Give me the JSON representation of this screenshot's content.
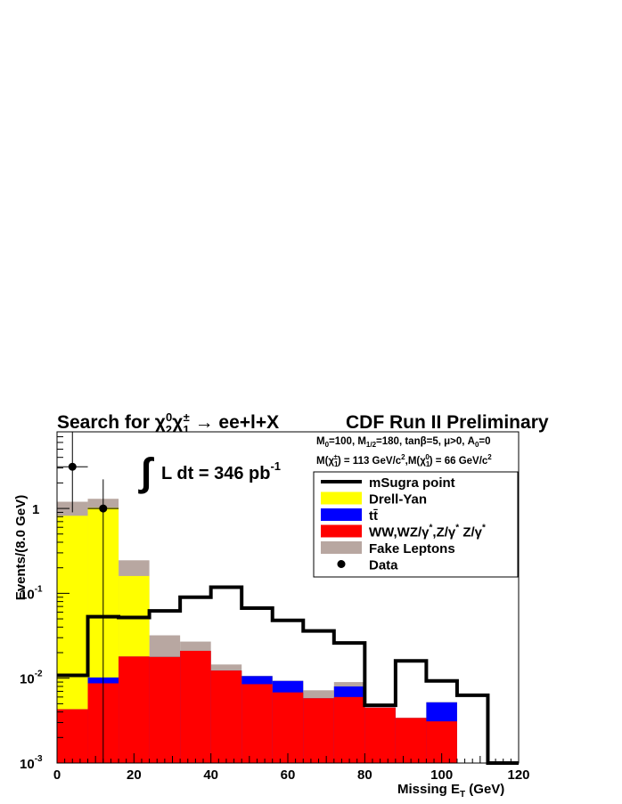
{
  "chart_data": {
    "type": "bar",
    "title": "Search for χ₂⁰χ₁± → ee+l+X",
    "title_parts": {
      "prefix": "Search for χ",
      "sub1": "2",
      "sup1": "0",
      "mid": "χ",
      "sub2": "1",
      "sup2": "±",
      "arrow": " → ",
      "suffix": "ee+l+X"
    },
    "experiment_label": "CDF Run II Preliminary",
    "luminosity": {
      "integral": "∫",
      "text": "L dt = 346 pb",
      "sup": "-1"
    },
    "params_line1": "M₀=100, M₁/₂=180, tanβ=5, μ>0, A₀=0",
    "params_line1_parts": {
      "a": "M",
      "a_sub": "0",
      "b": "=100, M",
      "b_sub": "1/2",
      "c": "=180, tanβ=5, μ>0, A",
      "c_sub": "0",
      "d": "=0"
    },
    "params_line2": "M(χ₁±) = 113 GeV/c²,M(χ₁⁰) = 66 GeV/c²",
    "params_line2_parts": {
      "a": "M(χ",
      "a_sub": "1",
      "a_sup": "±",
      "b": ") = 113 GeV/c",
      "b_sup": "2",
      "c": ",M(χ",
      "c_sub": "1",
      "c_sup": "0",
      "d": ") = 66 GeV/c",
      "d_sup": "2"
    },
    "xlabel": "Missing E_T (GeV)",
    "xlabel_parts": {
      "a": "Missing E",
      "sub": "T",
      "b": " (GeV)"
    },
    "ylabel": "Events/(8.0 GeV)",
    "xlim": [
      0,
      120
    ],
    "ylim": [
      0.001,
      8
    ],
    "yscale": "log",
    "x_ticks": [
      "0",
      "20",
      "40",
      "60",
      "80",
      "100",
      "120"
    ],
    "y_ticks": [
      {
        "base": "10",
        "exp": "-3",
        "value": 0.001
      },
      {
        "base": "10",
        "exp": "-2",
        "value": 0.01
      },
      {
        "base": "10",
        "exp": "-1",
        "value": 0.1
      },
      {
        "base": "1",
        "exp": "",
        "value": 1
      }
    ],
    "bin_edges": [
      0,
      8,
      16,
      24,
      32,
      40,
      48,
      56,
      64,
      72,
      80,
      88,
      96,
      104,
      112,
      120
    ],
    "stacked_series": [
      {
        "name": "WW,WZ/γ*,Z/γ* Z/γ*",
        "color": "#ff0000",
        "cumulative": [
          0.0043,
          0.0087,
          0.018,
          0.0178,
          0.021,
          0.0123,
          0.0085,
          0.0068,
          0.0058,
          0.006,
          0.0045,
          0.0034,
          0.0031,
          0.001,
          0.001
        ]
      },
      {
        "name": "tt̄",
        "color": "#0000ff",
        "cumulative": [
          0.0043,
          0.0102,
          0.018,
          0.0178,
          0.021,
          0.0123,
          0.0106,
          0.0093,
          0.0058,
          0.008,
          0.0045,
          0.0034,
          0.0052,
          0.001,
          0.001
        ]
      },
      {
        "name": "Drell-Yan",
        "color": "#ffff00",
        "cumulative": [
          0.82,
          1.02,
          0.16,
          0.0178,
          0.021,
          0.0123,
          0.0106,
          0.0093,
          0.0058,
          0.008,
          0.0045,
          0.0034,
          0.0052,
          0.001,
          0.001
        ]
      },
      {
        "name": "Fake Leptons",
        "color": "#b8a7a1",
        "cumulative": [
          1.2,
          1.3,
          0.245,
          0.032,
          0.027,
          0.0145,
          0.0106,
          0.0093,
          0.0072,
          0.009,
          0.0045,
          0.0034,
          0.0052,
          0.001,
          0.001
        ]
      }
    ],
    "signal_series": {
      "name": "mSugra point",
      "color": "#000000",
      "values": [
        0.0108,
        0.053,
        0.052,
        0.062,
        0.09,
        0.118,
        0.067,
        0.048,
        0.036,
        0.026,
        0.0048,
        0.016,
        0.0093,
        0.0063,
        0.001
      ]
    },
    "data_points": [
      {
        "x": 4,
        "y": 3.1,
        "xerr": 4,
        "ylow": 0.9,
        "yhigh": 8
      },
      {
        "x": 12,
        "y": 1.0,
        "xerr": 4,
        "ylow": 0.001,
        "yhigh": 2.2
      }
    ],
    "legend": {
      "placement": "top-right",
      "entries": [
        {
          "label": "mSugra point",
          "kind": "line",
          "color": "#000000"
        },
        {
          "label": "Drell-Yan",
          "kind": "fill",
          "color": "#ffff00"
        },
        {
          "label": "tt̄",
          "kind": "fill",
          "color": "#0000ff"
        },
        {
          "label": "WW,WZ/γ*,Z/γ* Z/γ*",
          "kind": "fill",
          "color": "#ff0000",
          "parts": {
            "a": "WW,WZ/γ",
            "s1": "*",
            "b": ",Z/γ",
            "s2": "*",
            "c": " Z/γ",
            "s3": "*"
          }
        },
        {
          "label": "Fake Leptons",
          "kind": "fill",
          "color": "#b8a7a1"
        },
        {
          "label": "Data",
          "kind": "marker",
          "color": "#000000"
        }
      ]
    }
  }
}
